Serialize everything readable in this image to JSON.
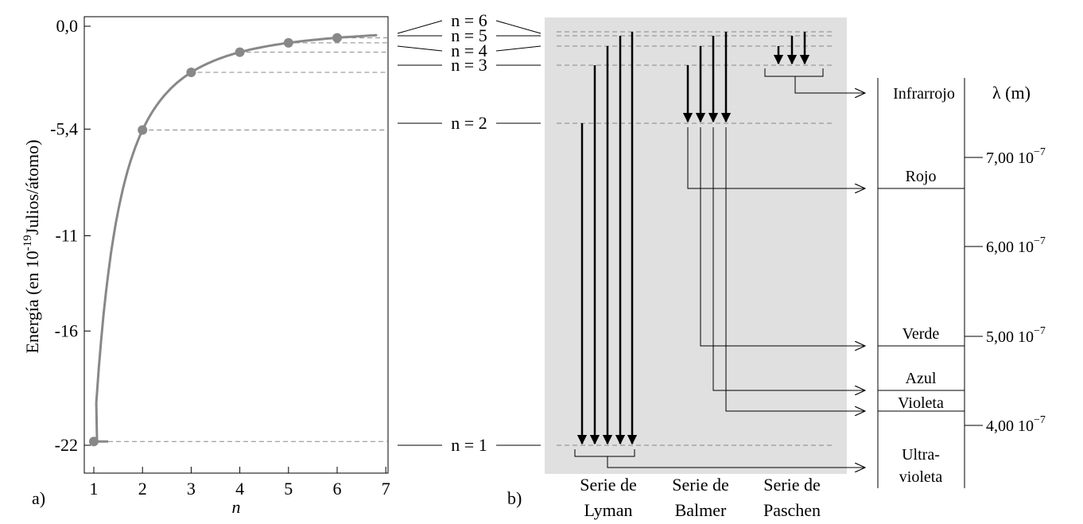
{
  "panel_a": {
    "label": "a)",
    "ylabel": "Energía (en 10",
    "ylabel_exp": "-19",
    "ylabel_tail": "Julios/átomo)",
    "xlabel": "n",
    "yticks": [
      "0,0",
      "-5,4",
      "-11",
      "-16",
      "-22"
    ],
    "xticks": [
      "1",
      "2",
      "3",
      "4",
      "5",
      "6",
      "7"
    ],
    "series_color": "#888888"
  },
  "chart_data": {
    "type": "scatter",
    "x": [
      1,
      2,
      3,
      4,
      5,
      6
    ],
    "y": [
      -21.8,
      -5.45,
      -2.42,
      -1.36,
      -0.87,
      -0.61
    ],
    "xlim": [
      0.75,
      7
    ],
    "ylim": [
      -23,
      0
    ],
    "yticks": [
      0,
      -5.4,
      -11,
      -16,
      -22
    ],
    "xticks": [
      1,
      2,
      3,
      4,
      5,
      6,
      7
    ],
    "curve_color": "#888888"
  },
  "levels": {
    "n6": "n = 6",
    "n5": "n = 5",
    "n4": "n = 4",
    "n3": "n = 3",
    "n2": "n = 2",
    "n1": "n = 1"
  },
  "panel_b": {
    "label": "b)",
    "background": "#e0e0e0",
    "series": [
      {
        "line1": "Serie de",
        "line2": "Lyman"
      },
      {
        "line1": "Serie de",
        "line2": "Balmer"
      },
      {
        "line1": "Serie de",
        "line2": "Paschen"
      }
    ]
  },
  "spectrum": {
    "lambda_label": "λ (m)",
    "regions": {
      "infrared": "Infrarrojo",
      "red": "Rojo",
      "green": "Verde",
      "blue": "Azul",
      "violet": "Violeta",
      "uv1": "Ultra-",
      "uv2": "violeta"
    },
    "ticks": [
      {
        "mant": "7,00 10",
        "exp": "−7"
      },
      {
        "mant": "6,00 10",
        "exp": "−7"
      },
      {
        "mant": "5,00 10",
        "exp": "−7"
      },
      {
        "mant": "4,00 10",
        "exp": "−7"
      }
    ]
  }
}
